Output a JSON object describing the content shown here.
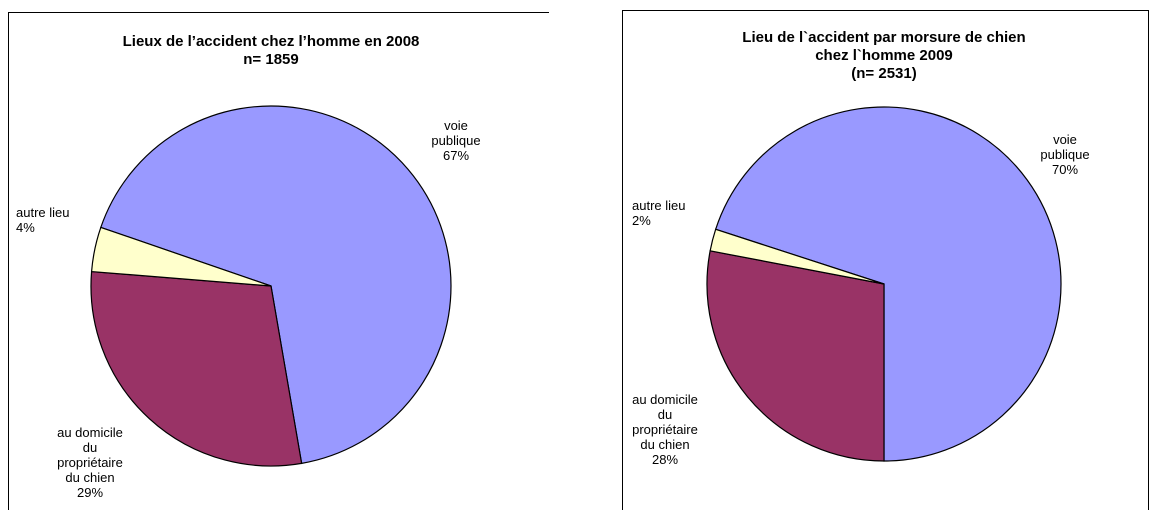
{
  "chart_data": [
    {
      "type": "pie",
      "title": "Lieux de l’accident chez l’homme en 2008",
      "subtitle": "n= 1859",
      "categories": [
        "voie publique",
        "au domicile du propriétaire du chien",
        "autre lieu"
      ],
      "values": [
        67,
        29,
        4
      ],
      "value_labels": [
        "67%",
        "29%",
        "4%"
      ],
      "colors": [
        "#9999ff",
        "#993366",
        "#ffffcc"
      ]
    },
    {
      "type": "pie",
      "title": "Lieu de l`accident par morsure de chien chez l`homme 2009",
      "subtitle": "(n= 2531)",
      "categories": [
        "voie publique",
        "au domicile du propriétaire du chien",
        "autre lieu"
      ],
      "values": [
        70,
        28,
        2
      ],
      "value_labels": [
        "70%",
        "28%",
        "2%"
      ],
      "colors": [
        "#9999ff",
        "#993366",
        "#ffffcc"
      ]
    }
  ]
}
